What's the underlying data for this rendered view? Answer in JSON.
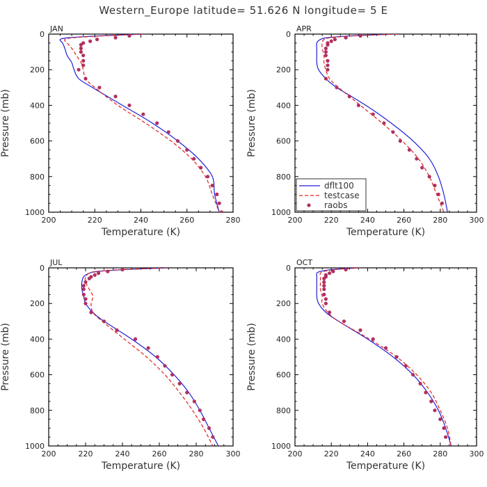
{
  "title": "Western_Europe  latitude= 51.626 N longitude= 5 E",
  "colors": {
    "dflt100": "#1f1fd6",
    "testcase": "#e02020",
    "raobs": "#b03060",
    "frame": "#000000"
  },
  "legend": {
    "panel": 1,
    "placement": "bottom-left",
    "entries": [
      "dflt100",
      "testcase",
      "raobs"
    ]
  },
  "chart_data": [
    {
      "type": "line",
      "panel_label": "JAN",
      "xlabel": "Temperature (K)",
      "ylabel": "Pressure (mb)",
      "xlim": [
        200,
        280
      ],
      "ylim": [
        1000,
        0
      ],
      "y_inverted": true,
      "xticks": [
        200,
        220,
        240,
        260,
        280
      ],
      "yticks": [
        0,
        200,
        400,
        600,
        800,
        1000
      ],
      "grid": false,
      "series": [
        {
          "name": "dflt100",
          "style": "solid",
          "p": [
            0,
            10,
            20,
            30,
            50,
            80,
            120,
            160,
            200,
            250,
            300,
            400,
            500,
            600,
            700,
            800,
            900,
            1000
          ],
          "t": [
            241,
            222,
            209,
            205,
            206,
            207,
            208,
            210,
            211,
            213,
            219,
            232,
            245,
            256,
            265,
            271,
            272,
            274
          ]
        },
        {
          "name": "testcase",
          "style": "dashed",
          "p": [
            0,
            10,
            20,
            30,
            50,
            80,
            120,
            160,
            200,
            250,
            300,
            400,
            500,
            600,
            700,
            800,
            900,
            1000
          ],
          "t": [
            241,
            224,
            211,
            207,
            208,
            210,
            212,
            214,
            215,
            216,
            220,
            230,
            242,
            253,
            262,
            268,
            271,
            274
          ]
        },
        {
          "name": "raobs",
          "style": "markers",
          "p": [
            10,
            20,
            30,
            40,
            50,
            60,
            80,
            100,
            120,
            150,
            175,
            200,
            250,
            300,
            350,
            400,
            450,
            500,
            550,
            600,
            650,
            700,
            750,
            800,
            850,
            900,
            950,
            1000
          ],
          "t": [
            235,
            229,
            221,
            218,
            215,
            214,
            214,
            214,
            215,
            215,
            215,
            213,
            216,
            222,
            229,
            235,
            241,
            247,
            252,
            256,
            260,
            263,
            266,
            269,
            271,
            273,
            274,
            275
          ]
        }
      ]
    },
    {
      "type": "line",
      "panel_label": "APR",
      "xlabel": "Temperature (K)",
      "ylabel": "Pressure (mb)",
      "xlim": [
        200,
        300
      ],
      "ylim": [
        1000,
        0
      ],
      "y_inverted": true,
      "xticks": [
        200,
        220,
        240,
        260,
        280,
        300
      ],
      "yticks": [
        0,
        200,
        400,
        600,
        800,
        1000
      ],
      "grid": false,
      "series": [
        {
          "name": "dflt100",
          "style": "solid",
          "p": [
            0,
            10,
            20,
            30,
            50,
            80,
            120,
            160,
            200,
            250,
            300,
            400,
            500,
            600,
            700,
            800,
            900,
            1000
          ],
          "t": [
            254,
            231,
            218,
            214,
            212,
            212,
            212,
            212,
            213,
            217,
            223,
            239,
            253,
            265,
            274,
            279,
            282,
            284
          ]
        },
        {
          "name": "testcase",
          "style": "dashed",
          "p": [
            0,
            10,
            20,
            30,
            50,
            80,
            120,
            160,
            200,
            250,
            300,
            400,
            500,
            600,
            700,
            800,
            900,
            1000
          ],
          "t": [
            256,
            233,
            220,
            216,
            215,
            215,
            216,
            216,
            217,
            219,
            224,
            236,
            248,
            259,
            268,
            274,
            278,
            282
          ]
        },
        {
          "name": "raobs",
          "style": "markers",
          "p": [
            10,
            20,
            30,
            40,
            50,
            60,
            80,
            100,
            120,
            150,
            175,
            200,
            250,
            300,
            350,
            400,
            450,
            500,
            550,
            600,
            650,
            700,
            750,
            800,
            850,
            900,
            950
          ],
          "t": [
            236,
            228,
            222,
            220,
            218,
            218,
            217,
            217,
            217,
            218,
            218,
            218,
            217,
            223,
            230,
            235,
            243,
            249,
            254,
            258,
            263,
            267,
            270,
            274,
            277,
            279,
            281
          ]
        }
      ]
    },
    {
      "type": "line",
      "panel_label": "JUL",
      "xlabel": "Temperature (K)",
      "ylabel": "Pressure (mb)",
      "xlim": [
        200,
        300
      ],
      "ylim": [
        1000,
        0
      ],
      "y_inverted": true,
      "xticks": [
        200,
        220,
        240,
        260,
        280,
        300
      ],
      "yticks": [
        0,
        200,
        400,
        600,
        800,
        1000
      ],
      "grid": false,
      "series": [
        {
          "name": "dflt100",
          "style": "solid",
          "p": [
            0,
            10,
            20,
            30,
            50,
            80,
            120,
            160,
            200,
            250,
            300,
            400,
            500,
            600,
            700,
            800,
            900,
            1000
          ],
          "t": [
            265,
            241,
            227,
            222,
            219,
            218,
            218,
            219,
            220,
            224,
            230,
            245,
            258,
            268,
            276,
            282,
            287,
            292
          ]
        },
        {
          "name": "testcase",
          "style": "dashed",
          "p": [
            0,
            10,
            20,
            30,
            50,
            80,
            120,
            160,
            200,
            250,
            300,
            400,
            500,
            600,
            700,
            800,
            900,
            1000
          ],
          "t": [
            264,
            239,
            226,
            222,
            220,
            220,
            222,
            224,
            223,
            224,
            229,
            241,
            253,
            263,
            271,
            278,
            284,
            289
          ]
        },
        {
          "name": "raobs",
          "style": "markers",
          "p": [
            10,
            20,
            30,
            40,
            50,
            60,
            80,
            100,
            120,
            150,
            175,
            200,
            250,
            300,
            350,
            400,
            450,
            500,
            550,
            600,
            650,
            700,
            750,
            800,
            850,
            900,
            950
          ],
          "t": [
            240,
            232,
            227,
            225,
            223,
            222,
            220,
            219,
            219,
            219,
            220,
            220,
            223,
            230,
            237,
            247,
            254,
            259,
            263,
            267,
            271,
            275,
            279,
            282,
            284,
            287,
            289
          ]
        }
      ]
    },
    {
      "type": "line",
      "panel_label": "OCT",
      "xlabel": "Temperature (K)",
      "ylabel": "Pressure (mb)",
      "xlim": [
        200,
        300
      ],
      "ylim": [
        1000,
        0
      ],
      "y_inverted": true,
      "xticks": [
        200,
        220,
        240,
        260,
        280,
        300
      ],
      "yticks": [
        0,
        200,
        400,
        600,
        800,
        1000
      ],
      "grid": false,
      "series": [
        {
          "name": "dflt100",
          "style": "solid",
          "p": [
            0,
            10,
            20,
            30,
            50,
            80,
            120,
            160,
            200,
            250,
            300,
            400,
            500,
            600,
            700,
            800,
            900,
            1000
          ],
          "t": [
            234,
            220,
            214,
            212,
            212,
            212,
            212,
            212,
            213,
            217,
            224,
            240,
            254,
            265,
            273,
            279,
            283,
            286
          ]
        },
        {
          "name": "testcase",
          "style": "dashed",
          "p": [
            0,
            10,
            20,
            30,
            50,
            80,
            120,
            160,
            200,
            250,
            300,
            400,
            500,
            600,
            700,
            800,
            900,
            1000
          ],
          "t": [
            236,
            222,
            216,
            214,
            214,
            214,
            214,
            215,
            215,
            218,
            224,
            241,
            256,
            267,
            275,
            280,
            284,
            286
          ]
        },
        {
          "name": "raobs",
          "style": "markers",
          "p": [
            10,
            20,
            30,
            40,
            50,
            60,
            80,
            100,
            120,
            150,
            175,
            200,
            250,
            300,
            350,
            400,
            450,
            500,
            550,
            600,
            650,
            700,
            750,
            800,
            850,
            900,
            950
          ],
          "t": [
            228,
            221,
            219,
            217,
            217,
            216,
            216,
            216,
            216,
            216,
            217,
            217,
            219,
            227,
            236,
            243,
            250,
            256,
            261,
            265,
            269,
            272,
            275,
            277,
            280,
            282,
            283
          ]
        }
      ]
    }
  ]
}
